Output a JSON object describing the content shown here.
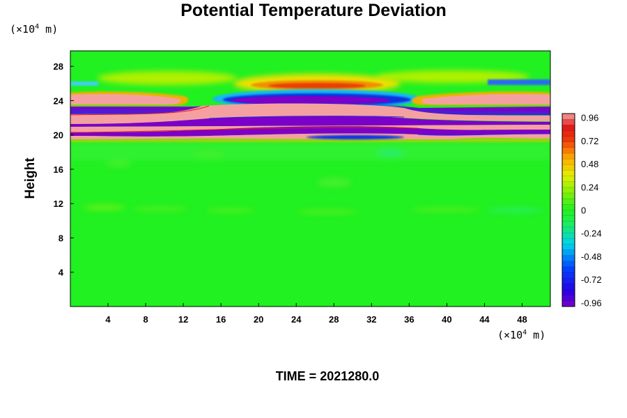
{
  "chart_data": {
    "type": "heatmap",
    "title": "Potential Temperature Deviation",
    "ylabel": "Height",
    "y_unit": {
      "prefix": "(×10",
      "exp": "4",
      "suffix": " m)"
    },
    "x_unit": {
      "prefix": "(×10",
      "exp": "4",
      "suffix": " m)"
    },
    "x_ticks": [
      "4",
      "8",
      "12",
      "16",
      "20",
      "24",
      "28",
      "32",
      "36",
      "40",
      "44",
      "48"
    ],
    "y_ticks": [
      "4",
      "8",
      "12",
      "16",
      "20",
      "24",
      "28"
    ],
    "xlim": [
      0,
      51
    ],
    "ylim": [
      0,
      29.8
    ],
    "colorbar": {
      "labels": [
        "0.96",
        "0.72",
        "0.48",
        "0.24",
        "0",
        "-0.24",
        "-0.48",
        "-0.72",
        "-0.96"
      ],
      "range": [
        -1.0,
        1.0
      ]
    },
    "footer": "TIME = 2021280.0",
    "colors": {
      "background_field": "#21f021",
      "max_saturation": "#f5a0a0",
      "min_saturation": "#7b00c8"
    }
  }
}
